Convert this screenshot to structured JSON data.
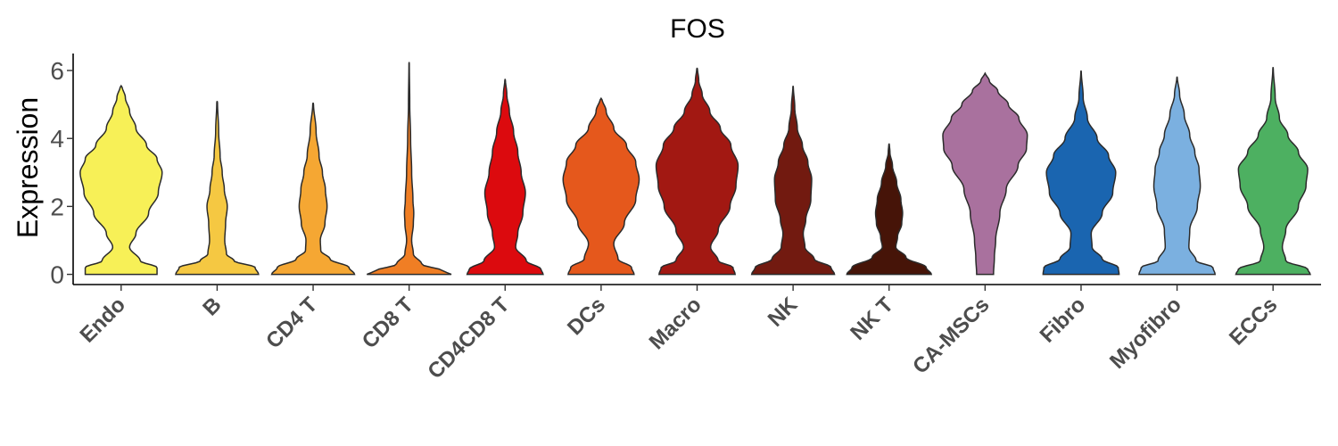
{
  "chart_data": {
    "type": "violin",
    "title": "FOS",
    "xlabel": "",
    "ylabel": "Expression",
    "ylim": [
      -0.3,
      6.5
    ],
    "yticks": [
      0,
      2,
      4,
      6
    ],
    "grid": false,
    "legend": "none",
    "categories": [
      "Endo",
      "B",
      "CD4 T",
      "CD8 T",
      "CD4CD8 T",
      "DCs",
      "Macro",
      "NK",
      "NK T",
      "CA-MSCs",
      "Fibro",
      "Myofibro",
      "ECCs"
    ],
    "series": [
      {
        "category": "Endo",
        "color": "#F7F057",
        "max": 5.55,
        "density": [
          [
            0,
            0.85
          ],
          [
            0.2,
            0.85
          ],
          [
            0.4,
            0.45
          ],
          [
            0.8,
            0.2
          ],
          [
            1.2,
            0.35
          ],
          [
            1.8,
            0.65
          ],
          [
            2.4,
            0.88
          ],
          [
            3.0,
            0.97
          ],
          [
            3.4,
            0.85
          ],
          [
            3.8,
            0.6
          ],
          [
            4.3,
            0.35
          ],
          [
            4.8,
            0.2
          ],
          [
            5.2,
            0.1
          ],
          [
            5.55,
            0.02
          ]
        ]
      },
      {
        "category": "B",
        "color": "#F5C842",
        "max": 5.1,
        "density": [
          [
            0,
            0.98
          ],
          [
            0.2,
            0.9
          ],
          [
            0.4,
            0.4
          ],
          [
            0.6,
            0.22
          ],
          [
            1.0,
            0.18
          ],
          [
            1.5,
            0.2
          ],
          [
            2.0,
            0.24
          ],
          [
            2.5,
            0.17
          ],
          [
            3.0,
            0.12
          ],
          [
            3.5,
            0.07
          ],
          [
            4.2,
            0.035
          ],
          [
            5.1,
            0.008
          ]
        ]
      },
      {
        "category": "CD4 T",
        "color": "#F5A733",
        "max": 5.05,
        "density": [
          [
            0,
            0.98
          ],
          [
            0.2,
            0.85
          ],
          [
            0.45,
            0.4
          ],
          [
            0.7,
            0.18
          ],
          [
            1.0,
            0.17
          ],
          [
            1.5,
            0.28
          ],
          [
            2.0,
            0.33
          ],
          [
            2.5,
            0.29
          ],
          [
            3.0,
            0.22
          ],
          [
            3.5,
            0.14
          ],
          [
            4.2,
            0.07
          ],
          [
            5.05,
            0.008
          ]
        ]
      },
      {
        "category": "CD8 T",
        "color": "#F07E24",
        "max": 6.25,
        "density": [
          [
            0,
            1.0
          ],
          [
            0.1,
            0.8
          ],
          [
            0.3,
            0.3
          ],
          [
            0.6,
            0.1
          ],
          [
            1.0,
            0.06
          ],
          [
            1.5,
            0.1
          ],
          [
            1.8,
            0.11
          ],
          [
            2.2,
            0.09
          ],
          [
            3.0,
            0.06
          ],
          [
            4.0,
            0.035
          ],
          [
            5.0,
            0.015
          ],
          [
            6.25,
            0.004
          ]
        ]
      },
      {
        "category": "CD4CD8 T",
        "color": "#DC0A0E",
        "max": 5.75,
        "density": [
          [
            0,
            0.9
          ],
          [
            0.15,
            0.85
          ],
          [
            0.4,
            0.5
          ],
          [
            0.8,
            0.25
          ],
          [
            1.2,
            0.3
          ],
          [
            1.8,
            0.42
          ],
          [
            2.4,
            0.48
          ],
          [
            3.0,
            0.38
          ],
          [
            3.6,
            0.3
          ],
          [
            4.2,
            0.2
          ],
          [
            4.8,
            0.1
          ],
          [
            5.3,
            0.04
          ],
          [
            5.75,
            0.006
          ]
        ]
      },
      {
        "category": "DCs",
        "color": "#E5581C",
        "max": 5.18,
        "density": [
          [
            0,
            0.78
          ],
          [
            0.2,
            0.72
          ],
          [
            0.45,
            0.4
          ],
          [
            0.9,
            0.3
          ],
          [
            1.5,
            0.55
          ],
          [
            2.2,
            0.82
          ],
          [
            2.8,
            0.9
          ],
          [
            3.3,
            0.82
          ],
          [
            3.8,
            0.6
          ],
          [
            4.3,
            0.3
          ],
          [
            4.8,
            0.12
          ],
          [
            5.18,
            0.02
          ]
        ]
      },
      {
        "category": "Macro",
        "color": "#A21812",
        "max": 6.08,
        "density": [
          [
            0,
            0.9
          ],
          [
            0.2,
            0.85
          ],
          [
            0.4,
            0.5
          ],
          [
            0.8,
            0.32
          ],
          [
            1.3,
            0.5
          ],
          [
            2.0,
            0.78
          ],
          [
            2.6,
            0.92
          ],
          [
            3.2,
            0.97
          ],
          [
            3.8,
            0.8
          ],
          [
            4.3,
            0.55
          ],
          [
            4.8,
            0.3
          ],
          [
            5.3,
            0.12
          ],
          [
            5.7,
            0.04
          ],
          [
            6.08,
            0.008
          ]
        ]
      },
      {
        "category": "NK",
        "color": "#721A10",
        "max": 5.55,
        "density": [
          [
            0,
            0.98
          ],
          [
            0.2,
            0.9
          ],
          [
            0.45,
            0.5
          ],
          [
            0.8,
            0.28
          ],
          [
            1.2,
            0.24
          ],
          [
            1.6,
            0.3
          ],
          [
            2.2,
            0.42
          ],
          [
            2.8,
            0.44
          ],
          [
            3.3,
            0.35
          ],
          [
            3.8,
            0.22
          ],
          [
            4.3,
            0.1
          ],
          [
            4.9,
            0.04
          ],
          [
            5.55,
            0.005
          ]
        ]
      },
      {
        "category": "NK T",
        "color": "#461408",
        "max": 3.85,
        "density": [
          [
            0,
            1.0
          ],
          [
            0.2,
            0.88
          ],
          [
            0.5,
            0.4
          ],
          [
            0.8,
            0.16
          ],
          [
            1.1,
            0.2
          ],
          [
            1.5,
            0.3
          ],
          [
            1.8,
            0.32
          ],
          [
            2.2,
            0.28
          ],
          [
            2.7,
            0.18
          ],
          [
            3.2,
            0.08
          ],
          [
            3.6,
            0.02
          ],
          [
            3.85,
            0.005
          ]
        ]
      },
      {
        "category": "CA-MSCs",
        "color": "#A9719E",
        "max": 5.92,
        "density": [
          [
            0,
            0.2
          ],
          [
            0.5,
            0.22
          ],
          [
            1.0,
            0.25
          ],
          [
            1.8,
            0.35
          ],
          [
            2.5,
            0.5
          ],
          [
            3.2,
            0.78
          ],
          [
            3.7,
            0.98
          ],
          [
            4.1,
            1.0
          ],
          [
            4.6,
            0.8
          ],
          [
            5.0,
            0.55
          ],
          [
            5.4,
            0.3
          ],
          [
            5.7,
            0.1
          ],
          [
            5.92,
            0.01
          ]
        ]
      },
      {
        "category": "Fibro",
        "color": "#1A65B0",
        "max": 6.0,
        "density": [
          [
            0,
            0.9
          ],
          [
            0.2,
            0.88
          ],
          [
            0.45,
            0.5
          ],
          [
            0.8,
            0.26
          ],
          [
            1.2,
            0.24
          ],
          [
            1.8,
            0.5
          ],
          [
            2.4,
            0.75
          ],
          [
            3.0,
            0.82
          ],
          [
            3.5,
            0.65
          ],
          [
            4.0,
            0.38
          ],
          [
            4.6,
            0.15
          ],
          [
            5.2,
            0.05
          ],
          [
            6.0,
            0.005
          ]
        ]
      },
      {
        "category": "Myofibro",
        "color": "#7BB0E0",
        "max": 5.82,
        "density": [
          [
            0,
            0.9
          ],
          [
            0.2,
            0.85
          ],
          [
            0.4,
            0.45
          ],
          [
            0.8,
            0.28
          ],
          [
            1.3,
            0.3
          ],
          [
            2.0,
            0.48
          ],
          [
            2.6,
            0.55
          ],
          [
            3.1,
            0.52
          ],
          [
            3.6,
            0.42
          ],
          [
            4.1,
            0.3
          ],
          [
            4.7,
            0.17
          ],
          [
            5.3,
            0.06
          ],
          [
            5.82,
            0.005
          ]
        ]
      },
      {
        "category": "ECCs",
        "color": "#4DB061",
        "max": 6.1,
        "density": [
          [
            0,
            0.88
          ],
          [
            0.15,
            0.82
          ],
          [
            0.4,
            0.3
          ],
          [
            0.8,
            0.22
          ],
          [
            1.3,
            0.3
          ],
          [
            2.0,
            0.6
          ],
          [
            2.6,
            0.78
          ],
          [
            3.1,
            0.82
          ],
          [
            3.6,
            0.6
          ],
          [
            4.1,
            0.35
          ],
          [
            4.6,
            0.15
          ],
          [
            5.2,
            0.05
          ],
          [
            6.1,
            0.005
          ]
        ]
      }
    ]
  }
}
